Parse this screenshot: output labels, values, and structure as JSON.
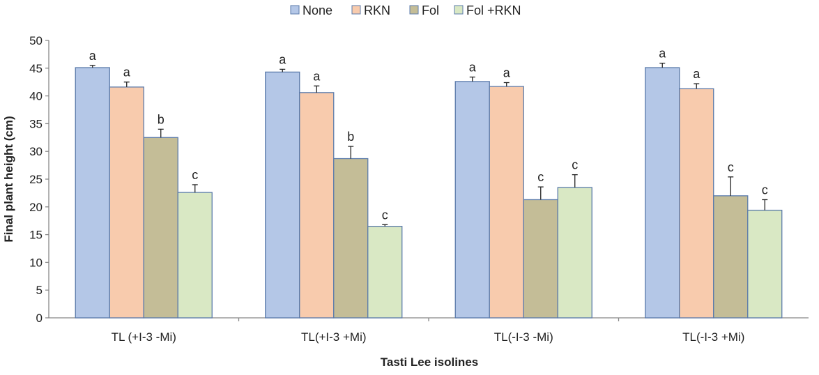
{
  "chart_data": {
    "type": "bar",
    "title": "",
    "xlabel": "Tasti Lee isolines",
    "ylabel": "Final plant height (cm)",
    "ylim": [
      0,
      50
    ],
    "yticks": [
      0,
      5,
      10,
      15,
      20,
      25,
      30,
      35,
      40,
      45,
      50
    ],
    "grid": false,
    "legend_placement": "top",
    "categories": [
      "TL (+I-3 -Mi)",
      "TL(+I-3 +Mi)",
      "TL(-I-3 -Mi)",
      "TL(-I-3 +Mi)"
    ],
    "series": [
      {
        "name": "None",
        "color": "#b4c7e7",
        "values": [
          45.1,
          44.3,
          42.6,
          45.1
        ],
        "errors": [
          0.4,
          0.5,
          0.8,
          0.8
        ],
        "letters": [
          "a",
          "a",
          "a",
          "a"
        ]
      },
      {
        "name": "RKN",
        "color": "#f8cbad",
        "values": [
          41.6,
          40.6,
          41.7,
          41.3
        ],
        "errors": [
          0.9,
          1.2,
          0.7,
          0.9
        ],
        "letters": [
          "a",
          "a",
          "a",
          "a"
        ]
      },
      {
        "name": "Fol",
        "color": "#c4bd97",
        "values": [
          32.5,
          28.7,
          21.3,
          22.0
        ],
        "errors": [
          1.5,
          2.2,
          2.3,
          3.4
        ],
        "letters": [
          "b",
          "b",
          "c",
          "c"
        ]
      },
      {
        "name": "Fol +RKN",
        "color": "#d9e8c4",
        "values": [
          22.6,
          16.5,
          23.5,
          19.4
        ],
        "errors": [
          1.4,
          0.3,
          2.3,
          1.9
        ],
        "letters": [
          "c",
          "c",
          "c",
          "c"
        ]
      }
    ],
    "bar_border_color": "#5b7bab"
  }
}
